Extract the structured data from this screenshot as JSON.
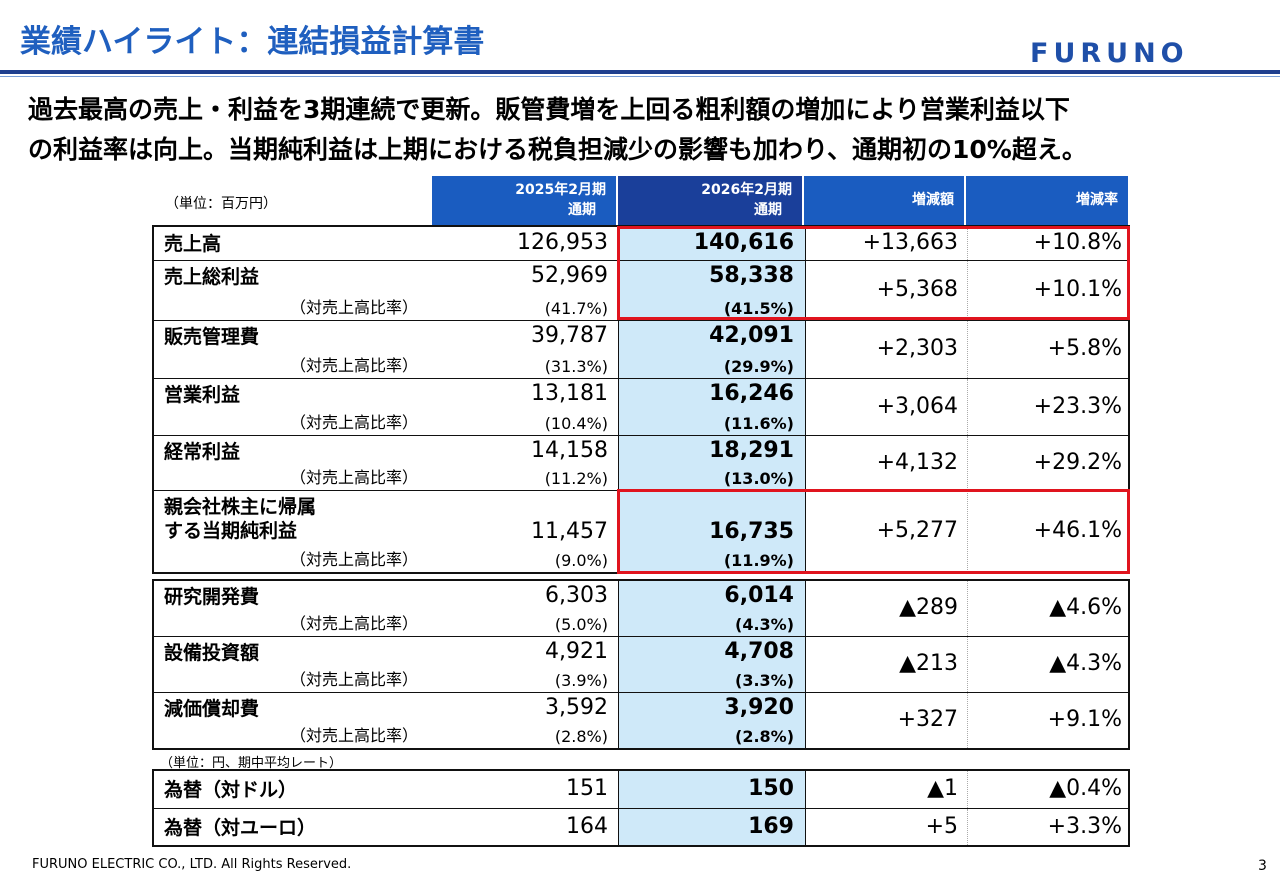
{
  "header": {
    "title": "業績ハイライト：連結損益計算書",
    "logo": "FURUNO"
  },
  "summary": [
    "過去最高の売上・利益を3期連続で更新。販管費増を上回る粗利額の増加により営業利益以下",
    "の利益率は向上。当期純利益は上期における税負担減少の影響も加わり、通期初の10%超え。"
  ],
  "table": {
    "unit": "（単位：百万円）",
    "columns": [
      [
        "2025年2月期",
        "通期"
      ],
      [
        "2026年2月期",
        "通期"
      ],
      [
        "増減額"
      ],
      [
        "増減率"
      ]
    ],
    "groups": [
      [
        {
          "label": [
            "売上高"
          ],
          "prev": "126,953",
          "curr": "140,616",
          "diff": "+13,663",
          "rate": "+10.8%"
        },
        {
          "label": [
            "売上総利益"
          ],
          "sub": "（対売上高比率）",
          "prev": "52,969",
          "prev_ratio": "(41.7%)",
          "curr": "58,338",
          "curr_ratio": "(41.5%)",
          "diff": "+5,368",
          "rate": "+10.1%"
        },
        {
          "label": [
            "販売管理費"
          ],
          "sub": "（対売上高比率）",
          "prev": "39,787",
          "prev_ratio": "(31.3%)",
          "curr": "42,091",
          "curr_ratio": "(29.9%)",
          "diff": "+2,303",
          "rate": "+5.8%"
        },
        {
          "label": [
            "営業利益"
          ],
          "sub": "（対売上高比率）",
          "prev": "13,181",
          "prev_ratio": "(10.4%)",
          "curr": "16,246",
          "curr_ratio": "(11.6%)",
          "diff": "+3,064",
          "rate": "+23.3%"
        },
        {
          "label": [
            "経常利益"
          ],
          "sub": "（対売上高比率）",
          "prev": "14,158",
          "prev_ratio": "(11.2%)",
          "curr": "18,291",
          "curr_ratio": "(13.0%)",
          "diff": "+4,132",
          "rate": "+29.2%"
        },
        {
          "label": [
            "親会社株主に帰属",
            "する当期純利益"
          ],
          "sub": "（対売上高比率）",
          "prev": "11,457",
          "prev_ratio": "(9.0%)",
          "curr": "16,735",
          "curr_ratio": "(11.9%)",
          "diff": "+5,277",
          "rate": "+46.1%"
        }
      ],
      [
        {
          "label": [
            "研究開発費"
          ],
          "sub": "（対売上高比率）",
          "prev": "6,303",
          "prev_ratio": "(5.0%)",
          "curr": "6,014",
          "curr_ratio": "(4.3%)",
          "diff": "▲289",
          "rate": "▲4.6%"
        },
        {
          "label": [
            "設備投資額"
          ],
          "sub": "（対売上高比率）",
          "prev": "4,921",
          "prev_ratio": "(3.9%)",
          "curr": "4,708",
          "curr_ratio": "(3.3%)",
          "diff": "▲213",
          "rate": "▲4.3%"
        },
        {
          "label": [
            "減価償却費"
          ],
          "sub": "（対売上高比率）",
          "prev": "3,592",
          "prev_ratio": "(2.8%)",
          "curr": "3,920",
          "curr_ratio": "(2.8%)",
          "diff": "+327",
          "rate": "+9.1%"
        }
      ]
    ]
  },
  "fx": {
    "unit": "（単位：円、期中平均レート）",
    "rows": [
      {
        "label": [
          "為替（対ドル）"
        ],
        "prev": "151",
        "curr": "150",
        "diff": "▲1",
        "rate": "▲0.4%"
      },
      {
        "label": [
          "為替（対ユーロ）"
        ],
        "prev": "164",
        "curr": "169",
        "diff": "+5",
        "rate": "+3.3%"
      }
    ]
  },
  "footer": {
    "copyright": "FURUNO ELECTRIC CO., LTD. All Rights Reserved.",
    "page": "3"
  }
}
